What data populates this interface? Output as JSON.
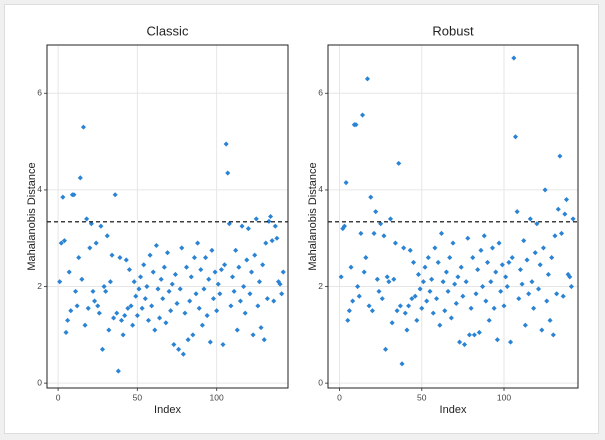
{
  "chart_data": [
    {
      "type": "scatter",
      "title": "Classic",
      "x_label": "Index",
      "y_label": "Mahalanobis Distance",
      "color": "#2b83d4",
      "grid": true,
      "xlim": [
        -7,
        145
      ],
      "ylim": [
        -0.1,
        7.0
      ],
      "xticks": [
        0,
        50,
        100
      ],
      "yticks": [
        0,
        2,
        4,
        6
      ],
      "hline": 3.34,
      "x": [
        1,
        2,
        3,
        4,
        5,
        6,
        7,
        8,
        9,
        10,
        11,
        12,
        13,
        14,
        15,
        16,
        17,
        18,
        19,
        20,
        21,
        22,
        23,
        24,
        25,
        26,
        27,
        28,
        29,
        30,
        31,
        32,
        33,
        34,
        35,
        36,
        37,
        38,
        39,
        40,
        41,
        42,
        43,
        44,
        45,
        46,
        47,
        48,
        49,
        50,
        51,
        52,
        53,
        54,
        55,
        56,
        57,
        58,
        59,
        60,
        61,
        62,
        63,
        64,
        65,
        66,
        67,
        68,
        69,
        70,
        71,
        72,
        73,
        74,
        75,
        76,
        77,
        78,
        79,
        80,
        81,
        82,
        83,
        84,
        85,
        86,
        87,
        88,
        89,
        90,
        91,
        92,
        93,
        94,
        95,
        96,
        97,
        98,
        99,
        100,
        101,
        102,
        103,
        104,
        105,
        106,
        107,
        108,
        109,
        110,
        111,
        112,
        113,
        114,
        115,
        116,
        117,
        118,
        119,
        120,
        121,
        122,
        123,
        124,
        125,
        126,
        127,
        128,
        129,
        130,
        131,
        132,
        133,
        134,
        135,
        136,
        137,
        138,
        139,
        140,
        141,
        142
      ],
      "values": [
        2.1,
        2.9,
        3.85,
        2.95,
        1.05,
        1.3,
        2.3,
        1.5,
        3.9,
        3.9,
        1.9,
        1.6,
        2.6,
        4.25,
        2.15,
        5.3,
        1.2,
        3.4,
        1.55,
        2.8,
        3.3,
        1.9,
        1.7,
        2.9,
        1.6,
        1.45,
        3.25,
        0.7,
        2.0,
        1.9,
        3.05,
        1.1,
        2.1,
        2.65,
        1.35,
        3.9,
        1.45,
        0.25,
        2.6,
        1.3,
        1.0,
        1.4,
        2.55,
        1.55,
        2.35,
        1.6,
        1.2,
        2.1,
        1.8,
        1.4,
        1.95,
        2.2,
        1.55,
        2.45,
        1.75,
        2.0,
        1.3,
        2.65,
        1.6,
        2.3,
        1.1,
        2.85,
        1.95,
        1.35,
        2.15,
        1.75,
        2.4,
        1.25,
        2.7,
        1.9,
        1.5,
        2.05,
        0.8,
        2.25,
        1.65,
        0.7,
        1.95,
        2.8,
        0.6,
        1.45,
        2.4,
        0.9,
        1.7,
        2.2,
        1.0,
        2.6,
        1.85,
        2.9,
        1.55,
        2.35,
        1.2,
        1.95,
        2.6,
        1.4,
        2.15,
        0.85,
        2.75,
        1.75,
        2.3,
        1.5,
        2.05,
        1.85,
        2.35,
        0.8,
        2.45,
        4.95,
        4.35,
        3.3,
        1.6,
        2.2,
        1.9,
        2.75,
        1.1,
        2.4,
        1.7,
        3.25,
        2.0,
        1.45,
        2.55,
        3.2,
        1.85,
        2.3,
        1.0,
        2.65,
        3.4,
        1.6,
        2.1,
        1.15,
        2.45,
        0.9,
        2.9,
        1.75,
        3.35,
        3.45,
        2.95,
        1.7,
        3.25,
        3.0,
        2.1,
        2.05,
        1.85,
        2.3
      ]
    },
    {
      "type": "scatter",
      "title": "Robust",
      "x_label": "Index",
      "y_label": "Mahalanobis Distance",
      "color": "#2b83d4",
      "grid": true,
      "xlim": [
        -7,
        145
      ],
      "ylim": [
        -0.1,
        7.0
      ],
      "xticks": [
        0,
        50,
        100
      ],
      "yticks": [
        0,
        2,
        4,
        6
      ],
      "hline": 3.34,
      "x": [
        1,
        2,
        3,
        4,
        5,
        6,
        7,
        8,
        9,
        10,
        11,
        12,
        13,
        14,
        15,
        16,
        17,
        18,
        19,
        20,
        21,
        22,
        23,
        24,
        25,
        26,
        27,
        28,
        29,
        30,
        31,
        32,
        33,
        34,
        35,
        36,
        37,
        38,
        39,
        40,
        41,
        42,
        43,
        44,
        45,
        46,
        47,
        48,
        49,
        50,
        51,
        52,
        53,
        54,
        55,
        56,
        57,
        58,
        59,
        60,
        61,
        62,
        63,
        64,
        65,
        66,
        67,
        68,
        69,
        70,
        71,
        72,
        73,
        74,
        75,
        76,
        77,
        78,
        79,
        80,
        81,
        82,
        83,
        84,
        85,
        86,
        87,
        88,
        89,
        90,
        91,
        92,
        93,
        94,
        95,
        96,
        97,
        98,
        99,
        100,
        101,
        102,
        103,
        104,
        105,
        106,
        107,
        108,
        109,
        110,
        111,
        112,
        113,
        114,
        115,
        116,
        117,
        118,
        119,
        120,
        121,
        122,
        123,
        124,
        125,
        126,
        127,
        128,
        129,
        130,
        131,
        132,
        133,
        134,
        135,
        136,
        137,
        138,
        139,
        140,
        141,
        142
      ],
      "values": [
        2.2,
        3.2,
        3.25,
        4.15,
        1.3,
        1.5,
        2.4,
        1.7,
        5.35,
        5.35,
        2.0,
        1.8,
        3.1,
        5.55,
        2.3,
        2.6,
        6.3,
        1.6,
        3.85,
        1.5,
        3.1,
        3.55,
        2.15,
        1.9,
        3.3,
        1.75,
        3.05,
        0.7,
        2.2,
        2.1,
        3.4,
        1.25,
        2.15,
        2.9,
        1.5,
        4.55,
        1.6,
        0.4,
        2.8,
        1.45,
        1.1,
        1.6,
        2.75,
        1.75,
        2.5,
        1.8,
        1.3,
        2.25,
        1.95,
        1.55,
        2.1,
        2.4,
        1.7,
        2.6,
        1.9,
        2.15,
        1.45,
        2.8,
        1.75,
        2.5,
        1.2,
        3.1,
        2.1,
        1.5,
        2.3,
        1.9,
        2.6,
        1.35,
        2.9,
        2.05,
        1.65,
        2.2,
        0.85,
        2.4,
        1.8,
        0.8,
        2.1,
        3.0,
        1.0,
        1.55,
        2.6,
        1.0,
        1.85,
        2.35,
        1.05,
        2.75,
        2.0,
        3.05,
        1.7,
        2.5,
        1.3,
        2.1,
        2.8,
        1.55,
        2.3,
        0.9,
        2.9,
        1.9,
        2.45,
        1.6,
        2.2,
        2.0,
        2.5,
        0.85,
        2.6,
        6.73,
        5.1,
        3.55,
        1.75,
        2.35,
        2.05,
        2.95,
        1.2,
        2.55,
        1.85,
        3.4,
        2.1,
        1.55,
        2.7,
        3.3,
        1.95,
        2.45,
        1.1,
        2.8,
        4.0,
        1.7,
        2.25,
        1.3,
        2.6,
        1.0,
        3.05,
        1.85,
        3.6,
        4.7,
        3.1,
        1.8,
        3.5,
        3.8,
        2.25,
        2.2,
        2.0,
        3.4
      ]
    }
  ]
}
